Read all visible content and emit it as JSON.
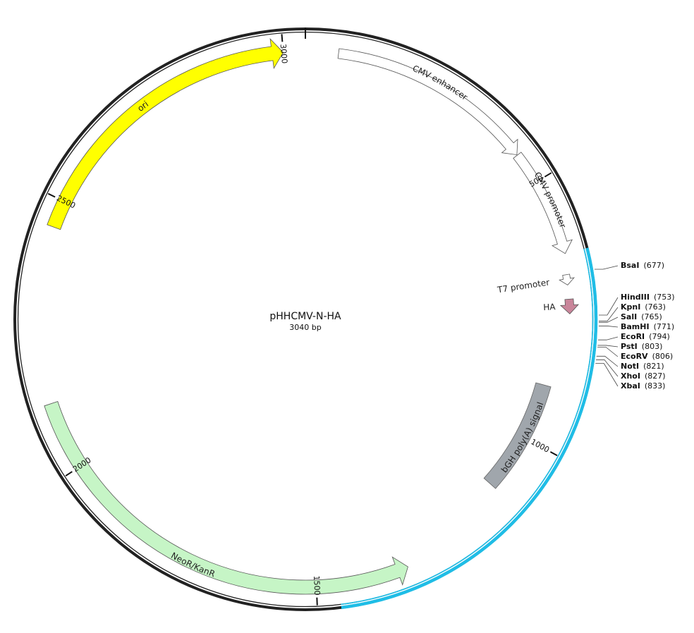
{
  "plasmid": {
    "name": "pHHCMV-N-HA",
    "size_label": "3040 bp",
    "length_bp": 3040
  },
  "colors": {
    "backbone": "#222222",
    "highlight": "#1fbde6",
    "ori": "#ffff00",
    "neor": "#c6f5c6",
    "bgh": "#a0a6ac",
    "ha": "#c9859a",
    "promoter": "#ffffff"
  },
  "highlight_region": {
    "start": 640,
    "end": 1460
  },
  "ticks": [
    {
      "bp": 500,
      "label": "500"
    },
    {
      "bp": 1000,
      "label": "1000"
    },
    {
      "bp": 1500,
      "label": "1500"
    },
    {
      "bp": 2000,
      "label": "2000"
    },
    {
      "bp": 2500,
      "label": "2500"
    },
    {
      "bp": 3000,
      "label": "3000"
    }
  ],
  "features": [
    {
      "key": "cmv-enhancer",
      "label": "CMV enhancer",
      "start": 60,
      "end": 440,
      "direction": "cw",
      "color": "#ffffff"
    },
    {
      "key": "cmv-promoter",
      "label": "CMV promoter",
      "start": 441,
      "end": 640,
      "direction": "cw",
      "color": "#ffffff"
    },
    {
      "key": "t7-promoter",
      "label": "T7 promoter",
      "start": 678,
      "end": 697,
      "direction": "cw",
      "color": "#ffffff"
    },
    {
      "key": "ha",
      "label": "HA",
      "start": 723,
      "end": 750,
      "direction": "cw",
      "color": "#c9859a"
    },
    {
      "key": "bgh",
      "label": "bGH poly(A) signal",
      "start": 890,
      "end": 1112,
      "direction": "none",
      "color": "#a0a6ac"
    },
    {
      "key": "neor",
      "label": "NeoR/KanR",
      "start": 1330,
      "end": 2125,
      "direction": "ccw",
      "color": "#c6f5c6"
    },
    {
      "key": "ori",
      "label": "ori",
      "start": 2450,
      "end": 3000,
      "direction": "cw",
      "color": "#ffff00"
    }
  ],
  "sites": [
    {
      "name": "BsaI",
      "pos": "(677)",
      "bp": 677
    },
    {
      "name": "HindIII",
      "pos": "(753)",
      "bp": 753
    },
    {
      "name": "KpnI",
      "pos": "(763)",
      "bp": 763
    },
    {
      "name": "SalI",
      "pos": "(765)",
      "bp": 765
    },
    {
      "name": "BamHI",
      "pos": "(771)",
      "bp": 771
    },
    {
      "name": "EcoRI",
      "pos": "(794)",
      "bp": 794
    },
    {
      "name": "PstI",
      "pos": "(803)",
      "bp": 803
    },
    {
      "name": "EcoRV",
      "pos": "(806)",
      "bp": 806
    },
    {
      "name": "NotI",
      "pos": "(821)",
      "bp": 821
    },
    {
      "name": "XhoI",
      "pos": "(827)",
      "bp": 827
    },
    {
      "name": "XbaI",
      "pos": "(833)",
      "bp": 833
    }
  ]
}
